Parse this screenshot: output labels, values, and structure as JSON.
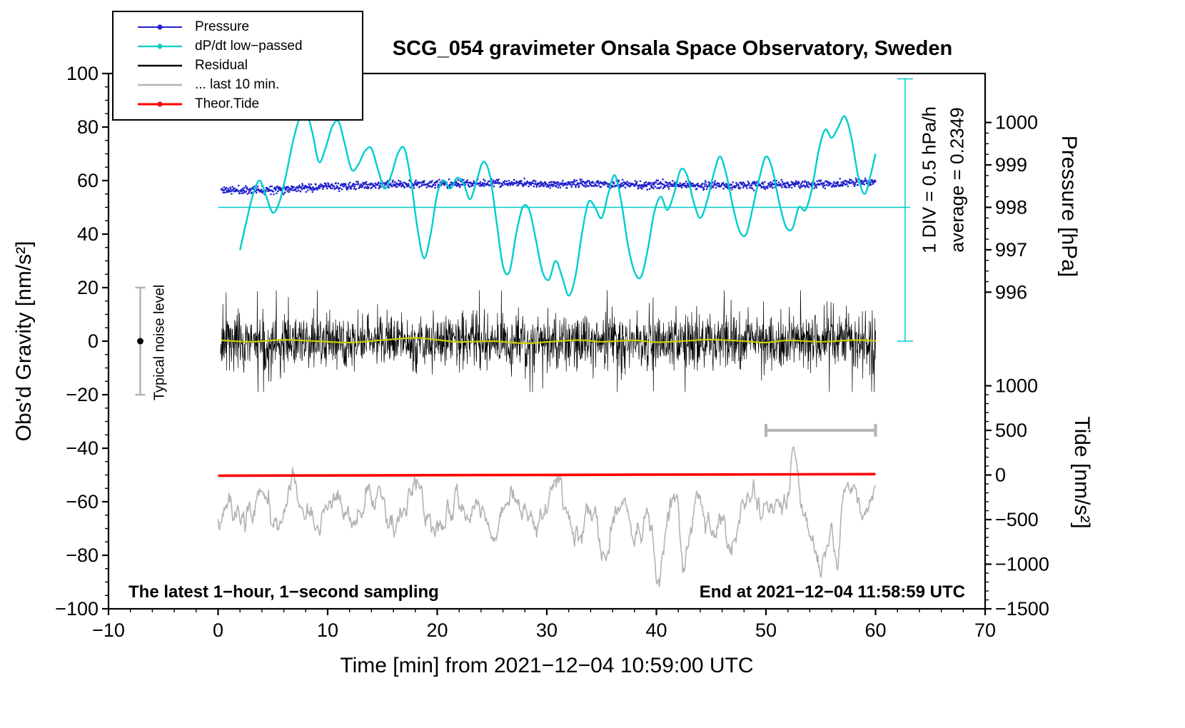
{
  "chart_data": {
    "type": "line",
    "title": "SCG_054 gravimeter Onsala Space Observatory, Sweden",
    "xlabel": "Time [min] from 2021−12−04 10:59:00 UTC",
    "x_range": [
      -10,
      70
    ],
    "x_major": 10,
    "x_minor": 2,
    "seed": 11,
    "axes": {
      "gravity": {
        "label": "Obs'd Gravity [nm/s²]",
        "range": [
          -100,
          100
        ],
        "major": 20,
        "minor": 5
      },
      "pressure": {
        "label": "Pressure [hPa]",
        "ticks": [
          1000,
          999,
          998,
          997,
          996
        ],
        "minor_step": 0.25,
        "gravity_at_998": 50,
        "gravity_per_hPa": 15.85
      },
      "tide": {
        "label": "Tide [nm/s²]",
        "ticks": [
          1000,
          500,
          0,
          -500,
          -1000,
          -1500
        ],
        "minor_step": 100,
        "gravity_at_0": -50,
        "gravity_per_unit": 0.0333333
      }
    },
    "legend": [
      {
        "label": "Pressure",
        "color": "#2222cc",
        "marker": true,
        "lw": 2
      },
      {
        "label": "dP/dt low−passed",
        "color": "#00cdcd",
        "marker": true,
        "lw": 2.2
      },
      {
        "label": "Residual",
        "color": "#000000",
        "marker": false,
        "lw": 2.6
      },
      {
        "label": "... last 10 min.",
        "color": "#b3b3b3",
        "marker": false,
        "lw": 2.6
      },
      {
        "label": "Theor.Tide",
        "color": "#ff0000",
        "marker": true,
        "lw": 3
      }
    ],
    "series": [
      {
        "name": "Pressure",
        "axis": "pressure",
        "style": "dots",
        "color": "#2222cc",
        "noise_hPa": 0.045,
        "n": 1400,
        "points": [
          [
            0.3,
            998.41
          ],
          [
            2,
            998.4
          ],
          [
            4,
            998.42
          ],
          [
            6,
            998.44
          ],
          [
            8,
            998.46
          ],
          [
            10,
            998.49
          ],
          [
            12,
            998.5
          ],
          [
            14,
            998.52
          ],
          [
            16,
            998.54
          ],
          [
            18,
            998.55
          ],
          [
            20,
            998.55
          ],
          [
            22,
            998.56
          ],
          [
            24,
            998.57
          ],
          [
            26,
            998.56
          ],
          [
            28,
            998.57
          ],
          [
            30,
            998.55
          ],
          [
            32,
            998.55
          ],
          [
            34,
            998.56
          ],
          [
            36,
            998.54
          ],
          [
            38,
            998.53
          ],
          [
            40,
            998.53
          ],
          [
            42,
            998.52
          ],
          [
            44,
            998.52
          ],
          [
            46,
            998.51
          ],
          [
            48,
            998.52
          ],
          [
            50,
            998.52
          ],
          [
            52,
            998.53
          ],
          [
            54,
            998.54
          ],
          [
            56,
            998.55
          ],
          [
            58,
            998.58
          ],
          [
            60,
            998.6
          ]
        ]
      },
      {
        "name": "dP/dt low−passed",
        "axis": "gravity",
        "style": "smooth",
        "color": "#00cdcd",
        "width": 2.4,
        "points": [
          [
            2,
            34
          ],
          [
            2.6,
            45
          ],
          [
            3.2,
            55
          ],
          [
            3.8,
            60
          ],
          [
            4.4,
            54
          ],
          [
            5,
            48
          ],
          [
            5.6,
            52
          ],
          [
            6.2,
            62
          ],
          [
            6.8,
            74
          ],
          [
            7.4,
            83
          ],
          [
            8,
            86
          ],
          [
            8.6,
            78
          ],
          [
            9.2,
            67
          ],
          [
            9.8,
            72
          ],
          [
            10.4,
            80
          ],
          [
            11,
            82
          ],
          [
            11.6,
            73
          ],
          [
            12.2,
            64
          ],
          [
            12.8,
            66
          ],
          [
            13.4,
            71
          ],
          [
            14,
            72
          ],
          [
            14.6,
            64
          ],
          [
            15.2,
            57
          ],
          [
            15.8,
            62
          ],
          [
            16.4,
            70
          ],
          [
            17,
            72
          ],
          [
            17.6,
            60
          ],
          [
            18.2,
            42
          ],
          [
            18.8,
            31
          ],
          [
            19.4,
            40
          ],
          [
            20,
            55
          ],
          [
            20.6,
            60
          ],
          [
            21.2,
            57
          ],
          [
            21.8,
            61
          ],
          [
            22.4,
            59
          ],
          [
            23,
            53
          ],
          [
            23.6,
            60
          ],
          [
            24.2,
            67
          ],
          [
            24.8,
            62
          ],
          [
            25.4,
            45
          ],
          [
            26,
            28
          ],
          [
            26.6,
            26
          ],
          [
            27.2,
            40
          ],
          [
            27.8,
            50
          ],
          [
            28.4,
            49
          ],
          [
            29,
            38
          ],
          [
            29.6,
            26
          ],
          [
            30.2,
            23
          ],
          [
            30.8,
            30
          ],
          [
            31.4,
            24
          ],
          [
            32,
            17
          ],
          [
            32.6,
            24
          ],
          [
            33.2,
            40
          ],
          [
            33.8,
            52
          ],
          [
            34.4,
            50
          ],
          [
            35,
            46
          ],
          [
            35.6,
            55
          ],
          [
            36.2,
            62
          ],
          [
            36.8,
            52
          ],
          [
            37.4,
            36
          ],
          [
            38,
            26
          ],
          [
            38.6,
            24
          ],
          [
            39.2,
            34
          ],
          [
            39.8,
            48
          ],
          [
            40.4,
            54
          ],
          [
            41,
            49
          ],
          [
            41.6,
            55
          ],
          [
            42.2,
            64
          ],
          [
            42.8,
            62
          ],
          [
            43.4,
            52
          ],
          [
            44,
            46
          ],
          [
            44.6,
            52
          ],
          [
            45.2,
            62
          ],
          [
            45.8,
            69
          ],
          [
            46.4,
            62
          ],
          [
            47,
            50
          ],
          [
            47.6,
            41
          ],
          [
            48.2,
            40
          ],
          [
            48.8,
            50
          ],
          [
            49.4,
            61
          ],
          [
            50,
            69
          ],
          [
            50.6,
            64
          ],
          [
            51.2,
            52
          ],
          [
            51.8,
            43
          ],
          [
            52.4,
            42
          ],
          [
            53,
            50
          ],
          [
            53.6,
            49
          ],
          [
            54.2,
            57
          ],
          [
            54.8,
            71
          ],
          [
            55.4,
            79
          ],
          [
            56,
            76
          ],
          [
            56.6,
            80
          ],
          [
            57.2,
            84
          ],
          [
            57.8,
            76
          ],
          [
            58.4,
            62
          ],
          [
            59,
            55
          ],
          [
            59.6,
            63
          ],
          [
            60,
            70
          ]
        ]
      },
      {
        "name": "Residual",
        "axis": "gravity",
        "style": "noise",
        "color": "#000000",
        "n": 2000,
        "sigma": 5.0,
        "spike_prob": 0.05,
        "spike_scale": 2.5,
        "max": 19,
        "x_from": 0.2,
        "x_to": 60
      },
      {
        "name": "Residual low−passed",
        "axis": "gravity",
        "style": "smooth",
        "color": "#cdcd00",
        "width": 2.2,
        "points": [
          [
            0.3,
            0.3
          ],
          [
            3,
            -0.2
          ],
          [
            6,
            0.5
          ],
          [
            9,
            0
          ],
          [
            12,
            -0.5
          ],
          [
            15,
            0.4
          ],
          [
            18,
            1.2
          ],
          [
            20,
            0.5
          ],
          [
            22,
            -0.3
          ],
          [
            25,
            0
          ],
          [
            28,
            -0.8
          ],
          [
            30,
            -0.3
          ],
          [
            33,
            0.4
          ],
          [
            35,
            -0.2
          ],
          [
            38,
            0.3
          ],
          [
            40,
            -0.4
          ],
          [
            43,
            0.2
          ],
          [
            45,
            0.6
          ],
          [
            48,
            0
          ],
          [
            50,
            -0.5
          ],
          [
            52,
            0.3
          ],
          [
            55,
            -0.2
          ],
          [
            58,
            0.4
          ],
          [
            60,
            0.1
          ]
        ]
      },
      {
        "name": "... last 10 min.",
        "axis": "gravity",
        "style": "jittered",
        "color": "#b3b3b3",
        "width": 1.6,
        "jitter": 2.0,
        "n": 900,
        "points": [
          [
            0,
            -66
          ],
          [
            1,
            -60
          ],
          [
            2,
            -70
          ],
          [
            3,
            -63
          ],
          [
            4,
            -58
          ],
          [
            5,
            -68
          ],
          [
            6,
            -62
          ],
          [
            7,
            -55
          ],
          [
            8,
            -65
          ],
          [
            9,
            -72
          ],
          [
            10,
            -60
          ],
          [
            11,
            -57
          ],
          [
            12,
            -68
          ],
          [
            13,
            -62
          ],
          [
            14,
            -57
          ],
          [
            15,
            -66
          ],
          [
            16,
            -71
          ],
          [
            17,
            -60
          ],
          [
            18,
            -55
          ],
          [
            19,
            -64
          ],
          [
            20,
            -70
          ],
          [
            21,
            -63
          ],
          [
            22,
            -58
          ],
          [
            23,
            -66
          ],
          [
            24,
            -60
          ],
          [
            25,
            -72
          ],
          [
            26,
            -64
          ],
          [
            27,
            -57
          ],
          [
            28,
            -65
          ],
          [
            29,
            -70
          ],
          [
            30,
            -62
          ],
          [
            31,
            -56
          ],
          [
            32,
            -66
          ],
          [
            33,
            -74
          ],
          [
            34,
            -60
          ],
          [
            35,
            -82
          ],
          [
            36,
            -64
          ],
          [
            37,
            -58
          ],
          [
            38,
            -70
          ],
          [
            39,
            -62
          ],
          [
            40,
            -84
          ],
          [
            41,
            -66
          ],
          [
            42,
            -58
          ],
          [
            42.5,
            -86
          ],
          [
            43,
            -65
          ],
          [
            44,
            -60
          ],
          [
            45,
            -70
          ],
          [
            46,
            -63
          ],
          [
            47,
            -76
          ],
          [
            48,
            -62
          ],
          [
            49,
            -57
          ],
          [
            50,
            -68
          ],
          [
            51,
            -62
          ],
          [
            52,
            -55
          ],
          [
            52.6,
            -38
          ],
          [
            53.2,
            -62
          ],
          [
            54,
            -70
          ],
          [
            55,
            -85
          ],
          [
            56,
            -63
          ],
          [
            56.5,
            -80
          ],
          [
            57,
            -60
          ],
          [
            58,
            -55
          ],
          [
            59,
            -68
          ],
          [
            60,
            -62
          ]
        ]
      },
      {
        "name": "Theor.Tide",
        "axis": "tide",
        "style": "line",
        "color": "#ff0000",
        "width": 3.6,
        "points": [
          [
            0,
            -8
          ],
          [
            60,
            10
          ]
        ]
      }
    ],
    "annotations": {
      "noise_level": {
        "label": "Typical noise level",
        "x": -7.1,
        "center": 0,
        "half_range": 20
      },
      "zero_line": {
        "gravity": 50,
        "x_from": 0,
        "x_to": 62.7
      },
      "div_scale": {
        "label": "1 DIV = 0.5 hPa/h",
        "x": 62.7,
        "g_from": 0,
        "g_to": 98
      },
      "average": {
        "label": "average = 0.2349"
      },
      "duration_bar": {
        "x_from": 50,
        "x_to": 60,
        "gravity": -33.3
      },
      "note_left": "The latest 1−hour, 1−second sampling",
      "note_right": "End at 2021−12−04 11:58:59 UTC"
    }
  }
}
